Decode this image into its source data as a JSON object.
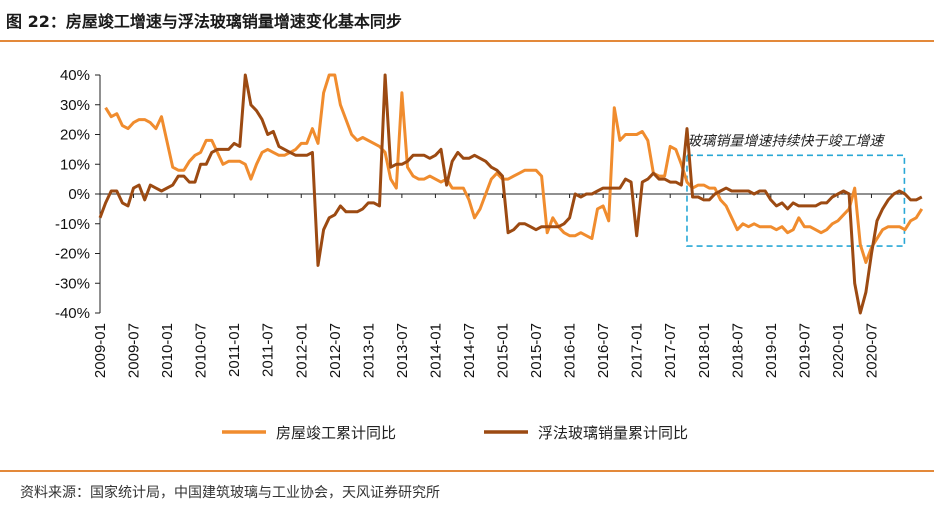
{
  "header": {
    "title": "图 22：房屋竣工增速与浮法玻璃销量增速变化基本同步"
  },
  "footer": {
    "source": "资料来源：国家统计局，中国建筑玻璃与工业协会，天风证券研究所"
  },
  "chart_data": {
    "type": "line",
    "title": "",
    "xlabel": "",
    "ylabel": "",
    "ylim": [
      -40,
      40
    ],
    "y_ticks": [
      "40%",
      "30%",
      "20%",
      "10%",
      "0%",
      "-10%",
      "-20%",
      "-30%",
      "-40%"
    ],
    "y_tick_values": [
      40,
      30,
      20,
      10,
      0,
      -10,
      -20,
      -30,
      -40
    ],
    "x_tick_labels": [
      "2009-01",
      "2009-07",
      "2010-01",
      "2010-07",
      "2011-01",
      "2011-07",
      "2012-01",
      "2012-07",
      "2013-01",
      "2013-07",
      "2014-01",
      "2014-07",
      "2015-01",
      "2015-07",
      "2016-01",
      "2016-07",
      "2017-01",
      "2017-07",
      "2018-01",
      "2018-07",
      "2019-01",
      "2019-07",
      "2020-01",
      "2020-07"
    ],
    "x_start": "2009-01",
    "x_end": "2020-12",
    "annotation": "玻璃销量增速持续快于竣工增速",
    "colors": {
      "completion": "#f08c2e",
      "glass": "#9c4a12",
      "annotation_box": "#29a8d6"
    },
    "series": [
      {
        "name": "房屋竣工累计同比",
        "data": [
          [
            "2009-02",
            29
          ],
          [
            "2009-03",
            26
          ],
          [
            "2009-04",
            27
          ],
          [
            "2009-05",
            23
          ],
          [
            "2009-06",
            22
          ],
          [
            "2009-07",
            24
          ],
          [
            "2009-08",
            25
          ],
          [
            "2009-09",
            25
          ],
          [
            "2009-10",
            24
          ],
          [
            "2009-11",
            22
          ],
          [
            "2009-12",
            26
          ],
          [
            "2010-02",
            9
          ],
          [
            "2010-03",
            8
          ],
          [
            "2010-04",
            8
          ],
          [
            "2010-05",
            11
          ],
          [
            "2010-06",
            13
          ],
          [
            "2010-07",
            14
          ],
          [
            "2010-08",
            18
          ],
          [
            "2010-09",
            18
          ],
          [
            "2010-10",
            14
          ],
          [
            "2010-11",
            10
          ],
          [
            "2010-12",
            11
          ],
          [
            "2011-02",
            11
          ],
          [
            "2011-03",
            10
          ],
          [
            "2011-04",
            5
          ],
          [
            "2011-05",
            10
          ],
          [
            "2011-06",
            14
          ],
          [
            "2011-07",
            15
          ],
          [
            "2011-08",
            14
          ],
          [
            "2011-09",
            13
          ],
          [
            "2011-10",
            13
          ],
          [
            "2011-11",
            14
          ],
          [
            "2011-12",
            15
          ],
          [
            "2012-01",
            17
          ],
          [
            "2012-02",
            17
          ],
          [
            "2012-03",
            22
          ],
          [
            "2012-04",
            17
          ],
          [
            "2012-05",
            34
          ],
          [
            "2012-06",
            40
          ],
          [
            "2012-07",
            40
          ],
          [
            "2012-08",
            30
          ],
          [
            "2012-09",
            25
          ],
          [
            "2012-10",
            20
          ],
          [
            "2012-11",
            18
          ],
          [
            "2012-12",
            19
          ],
          [
            "2013-02",
            17
          ],
          [
            "2013-03",
            16
          ],
          [
            "2013-04",
            14
          ],
          [
            "2013-05",
            5
          ],
          [
            "2013-06",
            2
          ],
          [
            "2013-07",
            34
          ],
          [
            "2013-08",
            9
          ],
          [
            "2013-09",
            6
          ],
          [
            "2013-10",
            5
          ],
          [
            "2013-11",
            5
          ],
          [
            "2013-12",
            6
          ],
          [
            "2014-02",
            4
          ],
          [
            "2014-03",
            5
          ],
          [
            "2014-04",
            2
          ],
          [
            "2014-05",
            2
          ],
          [
            "2014-06",
            2
          ],
          [
            "2014-07",
            -2
          ],
          [
            "2014-08",
            -8
          ],
          [
            "2014-09",
            -5
          ],
          [
            "2014-10",
            0
          ],
          [
            "2014-11",
            5
          ],
          [
            "2014-12",
            7
          ],
          [
            "2015-01",
            5
          ],
          [
            "2015-02",
            5
          ],
          [
            "2015-03",
            6
          ],
          [
            "2015-04",
            7
          ],
          [
            "2015-05",
            8
          ],
          [
            "2015-06",
            8
          ],
          [
            "2015-07",
            8
          ],
          [
            "2015-08",
            6
          ],
          [
            "2015-09",
            -13
          ],
          [
            "2015-10",
            -8
          ],
          [
            "2015-11",
            -11
          ],
          [
            "2015-12",
            -13
          ],
          [
            "2016-01",
            -14
          ],
          [
            "2016-02",
            -14
          ],
          [
            "2016-03",
            -13
          ],
          [
            "2016-04",
            -14
          ],
          [
            "2016-05",
            -15
          ],
          [
            "2016-06",
            -5
          ],
          [
            "2016-07",
            -4
          ],
          [
            "2016-08",
            -9
          ],
          [
            "2016-09",
            29
          ],
          [
            "2016-10",
            18
          ],
          [
            "2016-11",
            20
          ],
          [
            "2016-12",
            20
          ],
          [
            "2017-01",
            20
          ],
          [
            "2017-02",
            21
          ],
          [
            "2017-03",
            18
          ],
          [
            "2017-04",
            7
          ],
          [
            "2017-05",
            6
          ],
          [
            "2017-06",
            6
          ],
          [
            "2017-07",
            16
          ],
          [
            "2017-08",
            15
          ],
          [
            "2017-09",
            10
          ],
          [
            "2017-10",
            4
          ],
          [
            "2017-11",
            2
          ],
          [
            "2017-12",
            3
          ],
          [
            "2018-01",
            3
          ],
          [
            "2018-02",
            2
          ],
          [
            "2018-03",
            2
          ],
          [
            "2018-04",
            -2
          ],
          [
            "2018-05",
            -4
          ],
          [
            "2018-06",
            -8
          ],
          [
            "2018-07",
            -12
          ],
          [
            "2018-08",
            -10
          ],
          [
            "2018-09",
            -11
          ],
          [
            "2018-10",
            -10
          ],
          [
            "2018-11",
            -11
          ],
          [
            "2018-12",
            -11
          ],
          [
            "2019-01",
            -11
          ],
          [
            "2019-02",
            -12
          ],
          [
            "2019-03",
            -11
          ],
          [
            "2019-04",
            -13
          ],
          [
            "2019-05",
            -12
          ],
          [
            "2019-06",
            -8
          ],
          [
            "2019-07",
            -11
          ],
          [
            "2019-08",
            -11
          ],
          [
            "2019-09",
            -12
          ],
          [
            "2019-10",
            -13
          ],
          [
            "2019-11",
            -12
          ],
          [
            "2019-12",
            -10
          ],
          [
            "2020-01",
            -9
          ],
          [
            "2020-02",
            -7
          ],
          [
            "2020-03",
            -5
          ],
          [
            "2020-04",
            2
          ],
          [
            "2020-05",
            -17
          ],
          [
            "2020-06",
            -23
          ],
          [
            "2020-07",
            -18
          ],
          [
            "2020-08",
            -15
          ],
          [
            "2020-09",
            -12
          ],
          [
            "2020-10",
            -11
          ],
          [
            "2020-11",
            -11
          ],
          [
            "2020-12",
            -11
          ],
          [
            "2021-01",
            -12
          ],
          [
            "2021-02",
            -9
          ],
          [
            "2021-03",
            -8
          ],
          [
            "2021-04",
            -5
          ]
        ]
      },
      {
        "name": "浮法玻璃销量累计同比",
        "data": [
          [
            "2009-01",
            -8
          ],
          [
            "2009-02",
            -3
          ],
          [
            "2009-03",
            1
          ],
          [
            "2009-04",
            1
          ],
          [
            "2009-05",
            -3
          ],
          [
            "2009-06",
            -4
          ],
          [
            "2009-07",
            2
          ],
          [
            "2009-08",
            3
          ],
          [
            "2009-09",
            -2
          ],
          [
            "2009-10",
            3
          ],
          [
            "2009-11",
            2
          ],
          [
            "2009-12",
            1
          ],
          [
            "2010-02",
            3
          ],
          [
            "2010-03",
            6
          ],
          [
            "2010-04",
            6
          ],
          [
            "2010-05",
            4
          ],
          [
            "2010-06",
            4
          ],
          [
            "2010-07",
            10
          ],
          [
            "2010-08",
            10
          ],
          [
            "2010-09",
            14
          ],
          [
            "2010-10",
            15
          ],
          [
            "2010-11",
            15
          ],
          [
            "2010-12",
            15
          ],
          [
            "2011-01",
            17
          ],
          [
            "2011-02",
            16
          ],
          [
            "2011-03",
            40
          ],
          [
            "2011-04",
            30
          ],
          [
            "2011-05",
            28
          ],
          [
            "2011-06",
            25
          ],
          [
            "2011-07",
            20
          ],
          [
            "2011-08",
            21
          ],
          [
            "2011-09",
            16
          ],
          [
            "2011-10",
            15
          ],
          [
            "2011-11",
            14
          ],
          [
            "2011-12",
            13
          ],
          [
            "2012-01",
            13
          ],
          [
            "2012-02",
            13
          ],
          [
            "2012-03",
            14
          ],
          [
            "2012-04",
            -24
          ],
          [
            "2012-05",
            -12
          ],
          [
            "2012-06",
            -8
          ],
          [
            "2012-07",
            -7
          ],
          [
            "2012-08",
            -4
          ],
          [
            "2012-09",
            -6
          ],
          [
            "2012-10",
            -6
          ],
          [
            "2012-11",
            -6
          ],
          [
            "2012-12",
            -5
          ],
          [
            "2013-01",
            -3
          ],
          [
            "2013-02",
            -3
          ],
          [
            "2013-03",
            -4
          ],
          [
            "2013-04",
            40
          ],
          [
            "2013-05",
            9
          ],
          [
            "2013-06",
            10
          ],
          [
            "2013-07",
            10
          ],
          [
            "2013-08",
            11
          ],
          [
            "2013-09",
            13
          ],
          [
            "2013-10",
            13
          ],
          [
            "2013-11",
            13
          ],
          [
            "2013-12",
            12
          ],
          [
            "2014-01",
            13
          ],
          [
            "2014-02",
            15
          ],
          [
            "2014-03",
            3
          ],
          [
            "2014-04",
            11
          ],
          [
            "2014-05",
            14
          ],
          [
            "2014-06",
            12
          ],
          [
            "2014-07",
            12
          ],
          [
            "2014-08",
            13
          ],
          [
            "2014-09",
            12
          ],
          [
            "2014-10",
            11
          ],
          [
            "2014-11",
            9
          ],
          [
            "2014-12",
            8
          ],
          [
            "2015-01",
            6
          ],
          [
            "2015-02",
            -13
          ],
          [
            "2015-03",
            -12
          ],
          [
            "2015-04",
            -10
          ],
          [
            "2015-05",
            -10
          ],
          [
            "2015-06",
            -11
          ],
          [
            "2015-07",
            -12
          ],
          [
            "2015-08",
            -11
          ],
          [
            "2015-09",
            -11
          ],
          [
            "2015-10",
            -11
          ],
          [
            "2015-11",
            -11
          ],
          [
            "2015-12",
            -10
          ],
          [
            "2016-01",
            -8
          ],
          [
            "2016-02",
            0
          ],
          [
            "2016-03",
            -1
          ],
          [
            "2016-04",
            0
          ],
          [
            "2016-05",
            0
          ],
          [
            "2016-06",
            1
          ],
          [
            "2016-07",
            2
          ],
          [
            "2016-08",
            2
          ],
          [
            "2016-09",
            2
          ],
          [
            "2016-10",
            2
          ],
          [
            "2016-11",
            5
          ],
          [
            "2016-12",
            4
          ],
          [
            "2017-01",
            -14
          ],
          [
            "2017-02",
            4
          ],
          [
            "2017-03",
            5
          ],
          [
            "2017-04",
            7
          ],
          [
            "2017-05",
            5
          ],
          [
            "2017-06",
            5
          ],
          [
            "2017-07",
            4
          ],
          [
            "2017-08",
            4
          ],
          [
            "2017-09",
            3
          ],
          [
            "2017-10",
            22
          ],
          [
            "2017-11",
            -1
          ],
          [
            "2017-12",
            -1
          ],
          [
            "2018-01",
            -2
          ],
          [
            "2018-02",
            -2
          ],
          [
            "2018-03",
            0
          ],
          [
            "2018-04",
            1
          ],
          [
            "2018-05",
            2
          ],
          [
            "2018-06",
            1
          ],
          [
            "2018-07",
            1
          ],
          [
            "2018-08",
            1
          ],
          [
            "2018-09",
            1
          ],
          [
            "2018-10",
            0
          ],
          [
            "2018-11",
            1
          ],
          [
            "2018-12",
            1
          ],
          [
            "2019-01",
            -2
          ],
          [
            "2019-02",
            -4
          ],
          [
            "2019-03",
            -3
          ],
          [
            "2019-04",
            -5
          ],
          [
            "2019-05",
            -3
          ],
          [
            "2019-06",
            -4
          ],
          [
            "2019-07",
            -4
          ],
          [
            "2019-08",
            -4
          ],
          [
            "2019-09",
            -4
          ],
          [
            "2019-10",
            -3
          ],
          [
            "2019-11",
            -3
          ],
          [
            "2019-12",
            -1
          ],
          [
            "2020-01",
            0
          ],
          [
            "2020-02",
            1
          ],
          [
            "2020-03",
            0
          ],
          [
            "2020-04",
            -30
          ],
          [
            "2020-05",
            -41
          ],
          [
            "2020-06",
            -33
          ],
          [
            "2020-07",
            -20
          ],
          [
            "2020-08",
            -9
          ],
          [
            "2020-09",
            -5
          ],
          [
            "2020-10",
            -2
          ],
          [
            "2020-11",
            0
          ],
          [
            "2020-12",
            1
          ],
          [
            "2021-01",
            0
          ],
          [
            "2021-02",
            -2
          ],
          [
            "2021-03",
            -2
          ],
          [
            "2021-04",
            -1
          ]
        ]
      }
    ]
  }
}
